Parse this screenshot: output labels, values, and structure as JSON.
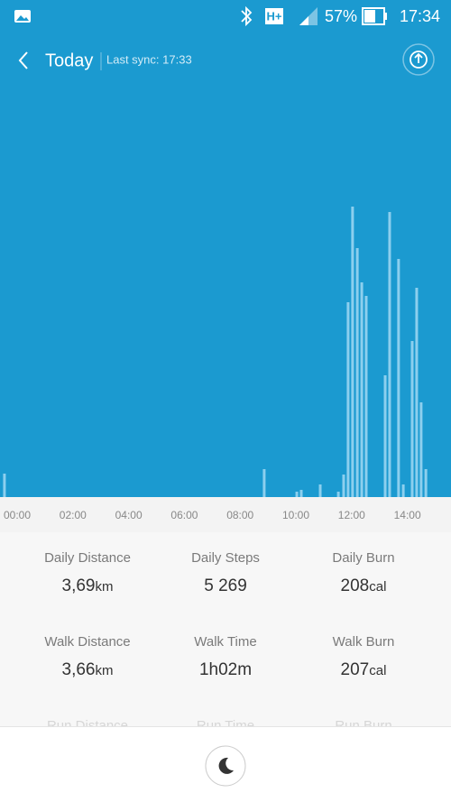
{
  "status_bar": {
    "battery": "57%",
    "time": "17:34"
  },
  "header": {
    "title": "Today",
    "subtitle": "Last sync: 17:33"
  },
  "chart_data": {
    "type": "bar",
    "x": [
      0.03,
      9.35,
      10.52,
      10.68,
      11.36,
      12.01,
      12.2,
      12.36,
      12.52,
      12.69,
      12.85,
      13.01,
      13.69,
      13.85,
      14.17,
      14.34,
      14.66,
      14.82,
      14.98,
      15.15
    ],
    "values": [
      26,
      31,
      6,
      8,
      14,
      6,
      25,
      216,
      322,
      276,
      238,
      223,
      135,
      316,
      264,
      14,
      173,
      232,
      105,
      31
    ],
    "xlim": [
      0,
      16
    ],
    "xticks": [
      {
        "value": 0,
        "label": "00:00"
      },
      {
        "value": 2,
        "label": "02:00"
      },
      {
        "value": 4,
        "label": "04:00"
      },
      {
        "value": 6,
        "label": "06:00"
      },
      {
        "value": 8,
        "label": "08:00"
      },
      {
        "value": 10,
        "label": "10:00"
      },
      {
        "value": 12,
        "label": "12:00"
      },
      {
        "value": 14,
        "label": "14:00"
      }
    ],
    "ylim": [
      0,
      460
    ],
    "color": "#8ccfee"
  },
  "stats": [
    {
      "label": "Daily Distance",
      "value": "3,69",
      "unit": "km"
    },
    {
      "label": "Daily Steps",
      "value": "5 269"
    },
    {
      "label": "Daily Burn",
      "value": "208",
      "unit": "cal"
    },
    {
      "label": "Walk Distance",
      "value": "3,66",
      "unit": "km"
    },
    {
      "label": "Walk Time",
      "value": "1h02m"
    },
    {
      "label": "Walk Burn",
      "value": "207",
      "unit": "cal"
    },
    {
      "label": "Run Distance"
    },
    {
      "label": "Run Time"
    },
    {
      "label": "Run Burn"
    }
  ]
}
